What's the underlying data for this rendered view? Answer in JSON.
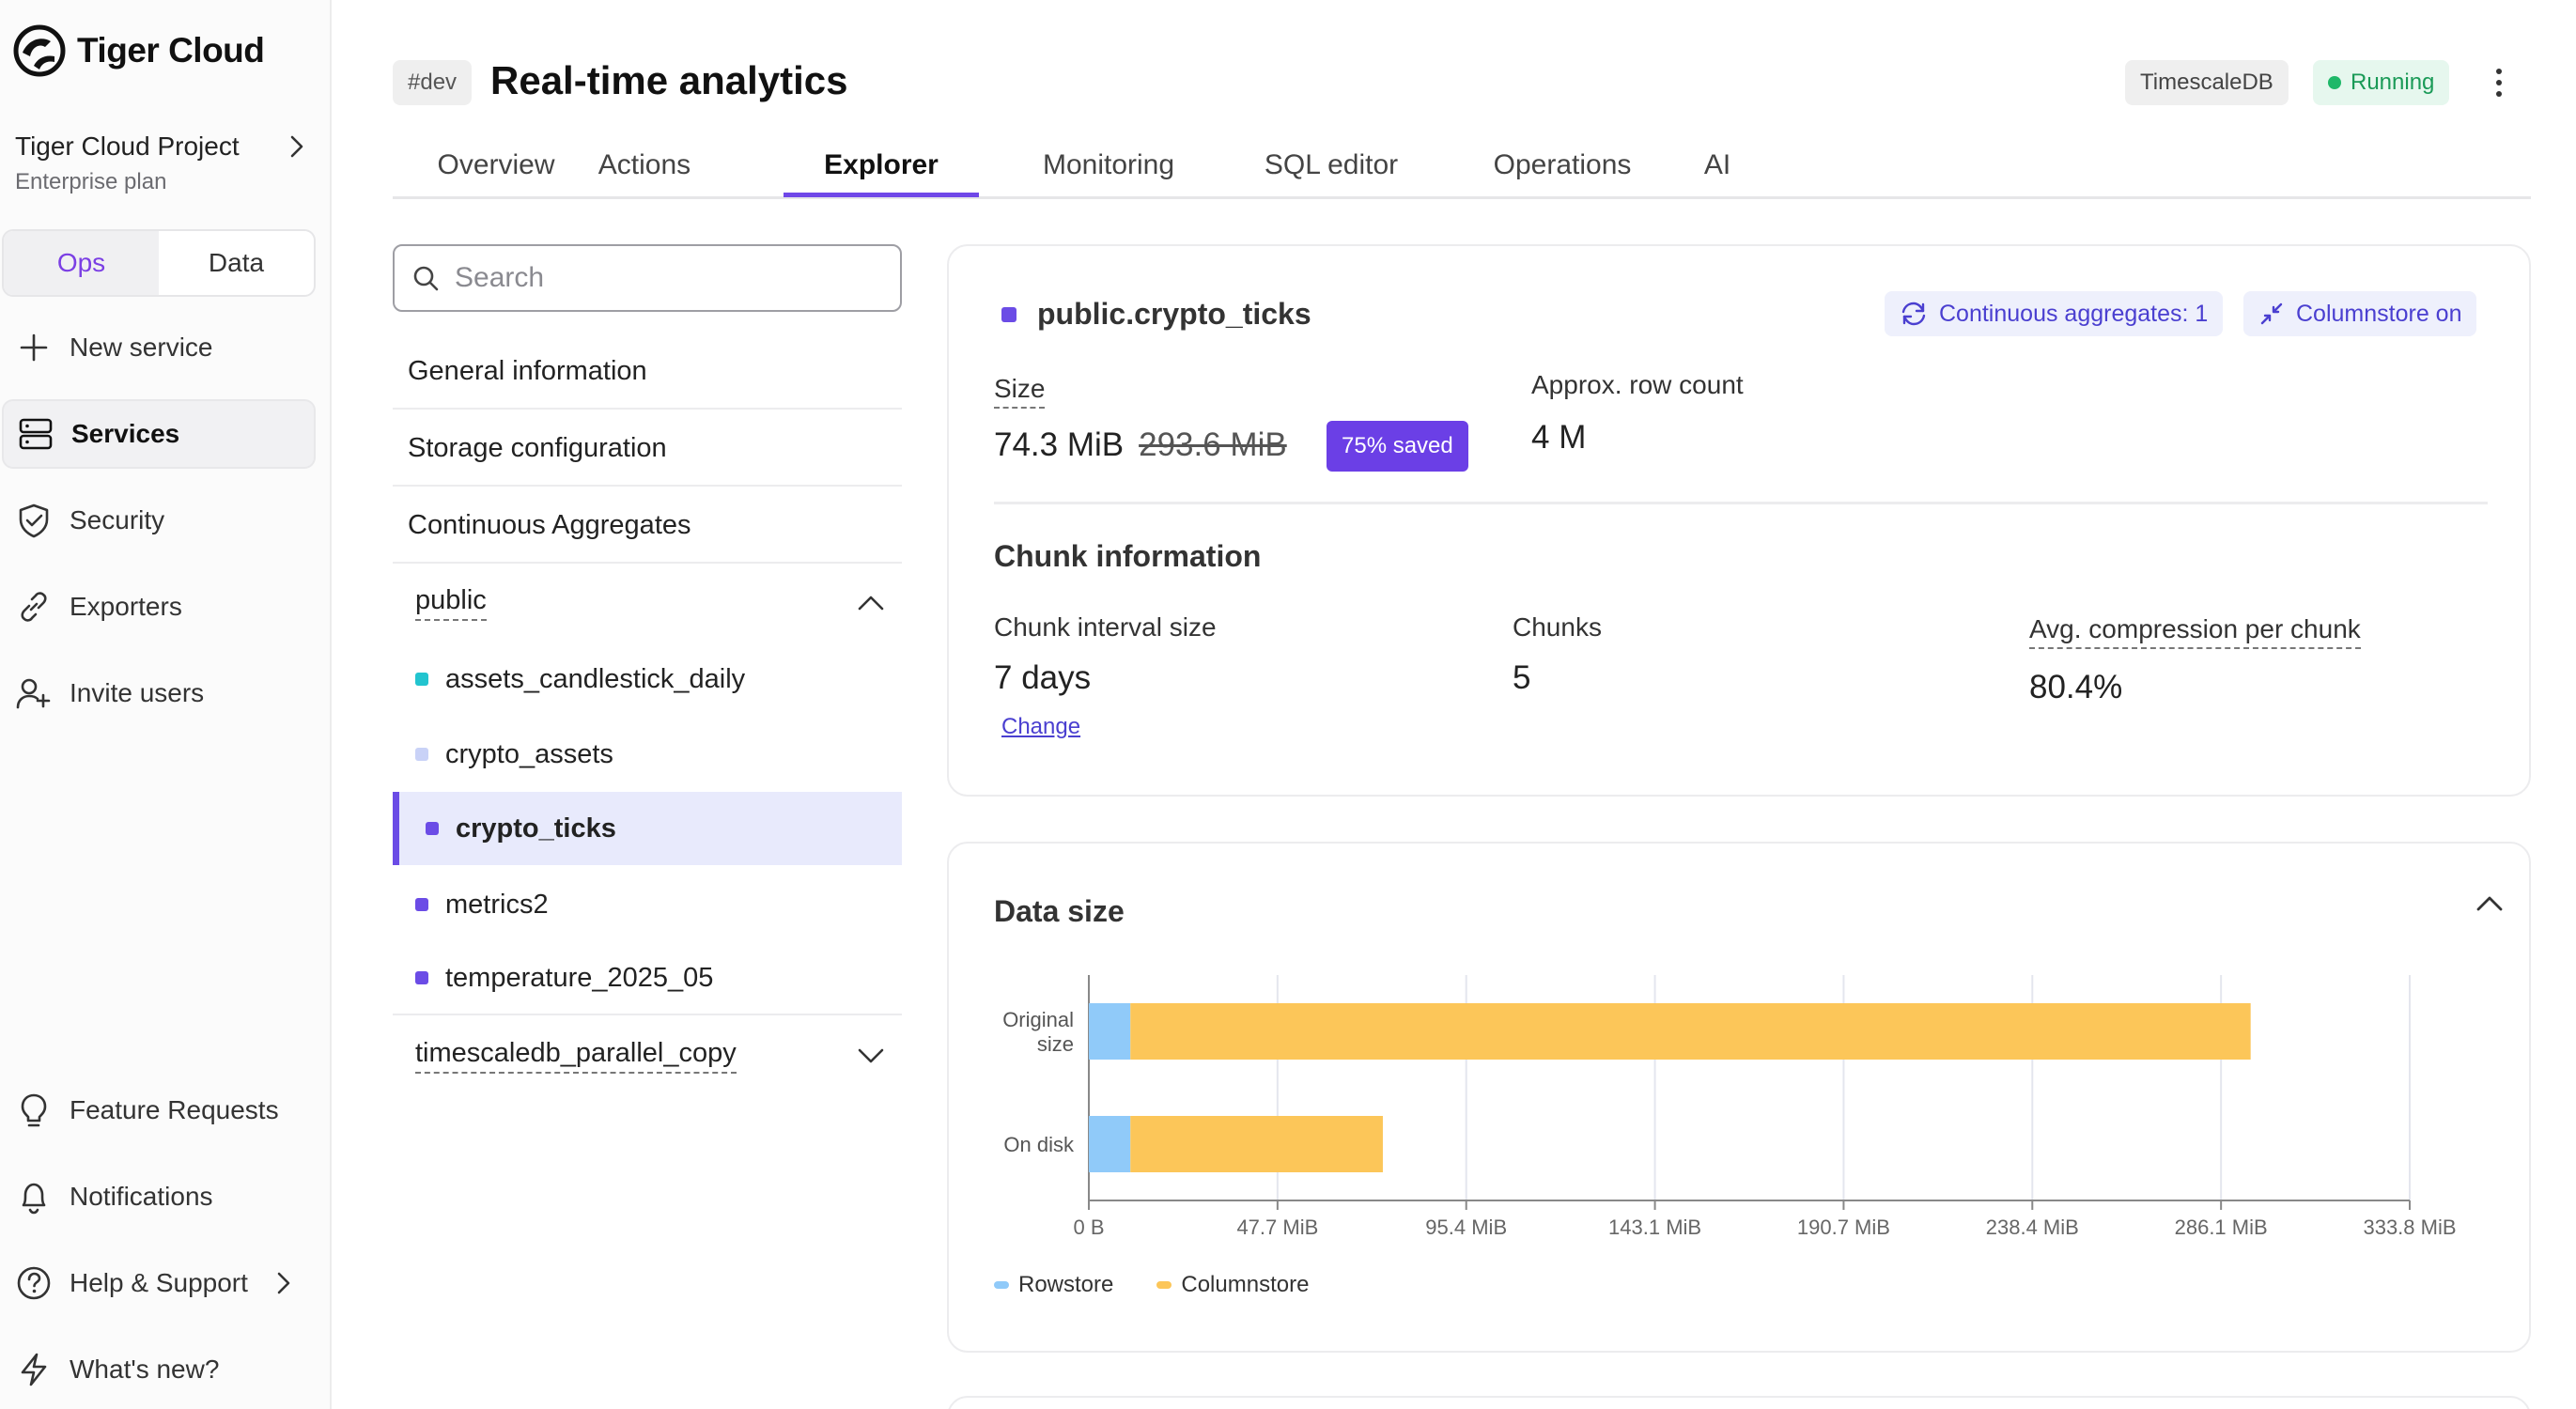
{
  "brand": {
    "name": "Tiger Cloud"
  },
  "project": {
    "name": "Tiger Cloud Project",
    "plan": "Enterprise plan"
  },
  "mode_toggle": {
    "ops": "Ops",
    "data": "Data",
    "active": "Ops"
  },
  "sidebar": {
    "items": [
      {
        "label": "New service",
        "icon": "plus-icon"
      },
      {
        "label": "Services",
        "icon": "server-icon",
        "active": true
      },
      {
        "label": "Security",
        "icon": "shield-check-icon"
      },
      {
        "label": "Exporters",
        "icon": "link-icon"
      },
      {
        "label": "Invite users",
        "icon": "user-plus-icon"
      }
    ],
    "footer_items": [
      {
        "label": "Feature Requests",
        "icon": "lightbulb-icon"
      },
      {
        "label": "Notifications",
        "icon": "bell-icon"
      },
      {
        "label": "Help & Support",
        "icon": "help-circle-icon"
      },
      {
        "label": "What's new?",
        "icon": "zap-icon"
      }
    ]
  },
  "header": {
    "env_tag": "#dev",
    "title": "Real-time analytics",
    "db_type": "TimescaleDB",
    "status": "Running",
    "status_color": "#1fb869"
  },
  "tabs": [
    "Overview",
    "Actions",
    "Explorer",
    "Monitoring",
    "SQL editor",
    "Operations",
    "AI"
  ],
  "active_tab": "Explorer",
  "explorer": {
    "search_placeholder": "Search",
    "sections": [
      "General information",
      "Storage configuration",
      "Continuous Aggregates"
    ],
    "schema_public": "public",
    "tables": [
      {
        "name": "assets_candlestick_daily",
        "color": "#22c4cf"
      },
      {
        "name": "crypto_assets",
        "color": "#c9d2f7"
      },
      {
        "name": "crypto_ticks",
        "color": "#6b4ce6",
        "active": true
      },
      {
        "name": "metrics2",
        "color": "#6b4ce6"
      },
      {
        "name": "temperature_2025_05",
        "color": "#6b4ce6"
      }
    ],
    "schema_other": "timescaledb_parallel_copy"
  },
  "table_info": {
    "name": "public.crypto_ticks",
    "color": "#6b4ce6",
    "cagg_badge": "Continuous aggregates: 1",
    "columnstore_badge": "Columnstore on",
    "size_label": "Size",
    "size_value": "74.3 MiB",
    "size_original": "293.6 MiB",
    "saved": "75% saved",
    "row_count_label": "Approx. row count",
    "row_count": "4 M"
  },
  "chunk_info": {
    "title": "Chunk information",
    "interval_label": "Chunk interval size",
    "interval_value": "7 days",
    "change_link": "Change",
    "chunks_label": "Chunks",
    "chunks_value": "5",
    "avg_label": "Avg. compression per chunk",
    "avg_value": "80.4%"
  },
  "data_size": {
    "title": "Data size"
  },
  "chart_data": {
    "type": "bar",
    "orientation": "horizontal",
    "stacked": true,
    "categories": [
      "Original size",
      "On disk"
    ],
    "series": [
      {
        "name": "Rowstore",
        "values": [
          10.5,
          10.5
        ],
        "color": "#90caf9"
      },
      {
        "name": "Columnstore",
        "values": [
          283.1,
          63.8
        ],
        "color": "#fcc659"
      }
    ],
    "x_ticks": [
      "0 B",
      "47.7 MiB",
      "95.4 MiB",
      "143.1 MiB",
      "190.7 MiB",
      "238.4 MiB",
      "286.1 MiB",
      "333.8 MiB"
    ],
    "xlim": [
      0,
      333.8
    ],
    "unit": "MiB",
    "grid": true,
    "legend": "bottom-left"
  }
}
